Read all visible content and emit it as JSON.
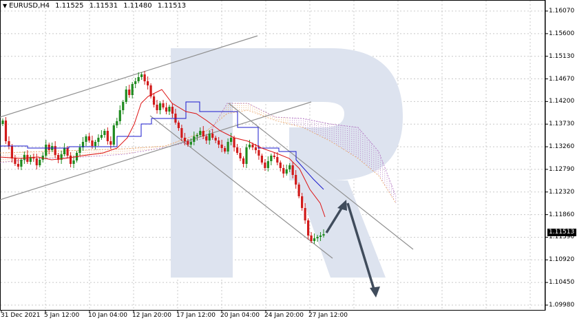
{
  "header": {
    "symbol": "EURUSD,H4",
    "open": "1.11525",
    "high": "1.11531",
    "low": "1.11480",
    "close": "1.11513"
  },
  "current_price": "1.11513",
  "y_axis": {
    "labels": [
      "1.16070",
      "1.15600",
      "1.15130",
      "1.14670",
      "1.14200",
      "1.13730",
      "1.13260",
      "1.12790",
      "1.12320",
      "1.11860",
      "1.11390",
      "1.10920",
      "1.10450",
      "1.09980"
    ]
  },
  "x_axis": {
    "labels": [
      "31 Dec 2021",
      "5 Jan 12:00",
      "10 Jan 04:00",
      "12 Jan 20:00",
      "17 Jan 12:00",
      "20 Jan 04:00",
      "24 Jan 20:00",
      "27 Jan 12:00"
    ]
  },
  "colors": {
    "bull": "#1e8a1e",
    "bear": "#d11a1a",
    "kijun": "#1a1acc",
    "tenkan": "#dd1111",
    "cloud": "#e8a060",
    "cloud_b": "#b070c0",
    "channel": "#909090",
    "arrow": "#404c5c",
    "watermark": "#dde3ef"
  },
  "chart_data": {
    "type": "candlestick",
    "title": "",
    "ylim": [
      1.0998,
      1.1607
    ],
    "price_min_label": "1.09980",
    "price_max_label": "1.16070"
  }
}
